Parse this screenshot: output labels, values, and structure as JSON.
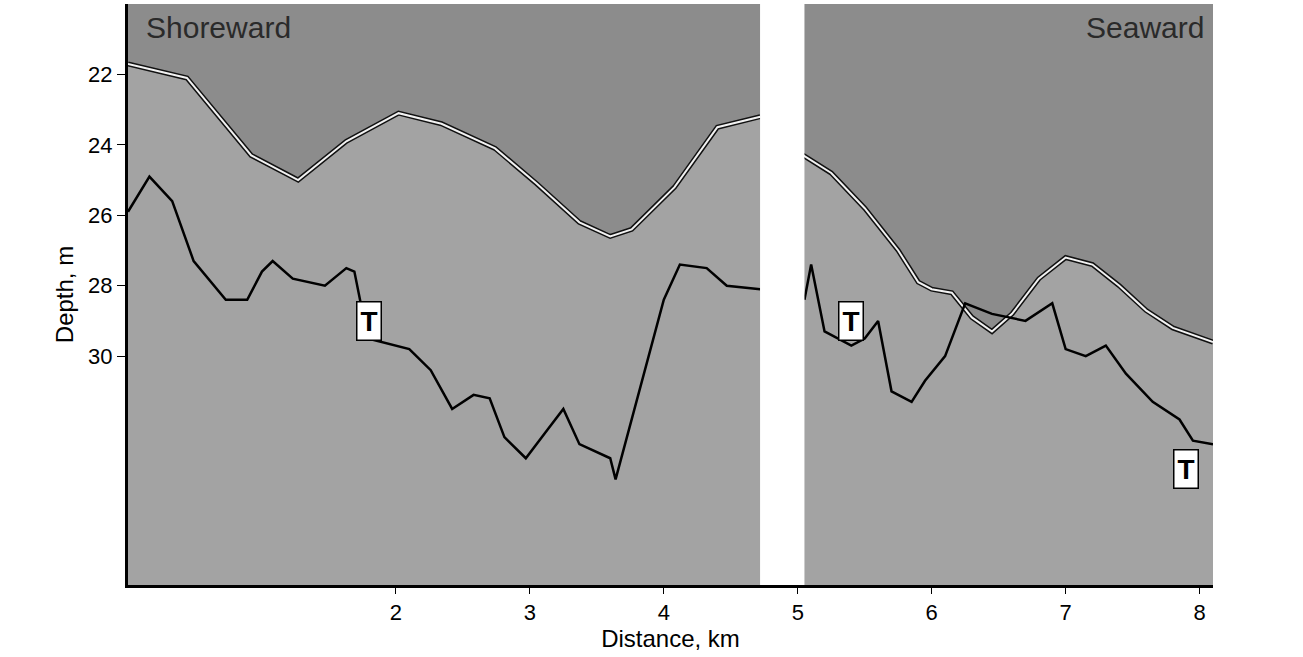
{
  "chart_data": {
    "type": "line",
    "x_label": "Distance, km",
    "y_label": "Depth, m",
    "xlim": [
      0,
      8.1
    ],
    "ylim": [
      36.5,
      20
    ],
    "xticks": [
      2,
      3,
      4,
      5,
      6,
      7,
      8
    ],
    "yticks": [
      22,
      24,
      26,
      28,
      30
    ],
    "grid": false,
    "series": [
      {
        "type": "area",
        "color": "#8c8c8c",
        "x": [
          0,
          0.44,
          0.92,
          1.27,
          1.63,
          2.02,
          2.34,
          2.74,
          3.05,
          3.37,
          3.6,
          3.76,
          4.08,
          4.4,
          4.72,
          4.86,
          5.0,
          5.25,
          5.5,
          5.75,
          5.9,
          6.0,
          6.15,
          6.3,
          6.45,
          6.6,
          6.8,
          7.0,
          7.2,
          7.4,
          7.6,
          7.8,
          8.1
        ],
        "values": [
          21.7,
          22.1,
          24.3,
          25.0,
          23.9,
          23.1,
          23.4,
          24.1,
          25.1,
          26.2,
          26.6,
          26.4,
          25.2,
          23.5,
          23.2,
          null,
          24.2,
          24.8,
          25.8,
          27.0,
          27.9,
          28.1,
          28.2,
          28.9,
          29.3,
          28.8,
          27.8,
          27.2,
          27.4,
          28.0,
          28.7,
          29.2,
          29.6
        ]
      },
      {
        "type": "line",
        "color": "#000000",
        "x": [
          0,
          0.16,
          0.33,
          0.49,
          0.73,
          0.89,
          1.0,
          1.08,
          1.23,
          1.47,
          1.63,
          1.69,
          1.79,
          2.1,
          2.26,
          2.42,
          2.58,
          2.7,
          2.81,
          2.97,
          3.13,
          3.25,
          3.37,
          3.6,
          3.64,
          3.76,
          4.0,
          4.12,
          4.32,
          4.47,
          4.72,
          4.86,
          5.05,
          5.1,
          5.2,
          5.4,
          5.5,
          5.6,
          5.7,
          5.85,
          5.95,
          6.1,
          6.25,
          6.45,
          6.7,
          6.9,
          7.0,
          7.15,
          7.3,
          7.45,
          7.65,
          7.85,
          7.95,
          8.1
        ],
        "values": [
          25.9,
          24.9,
          25.6,
          27.3,
          28.4,
          28.4,
          27.6,
          27.3,
          27.8,
          28.0,
          27.5,
          27.6,
          29.5,
          29.8,
          30.4,
          31.5,
          31.1,
          31.2,
          32.3,
          32.9,
          32.1,
          31.5,
          32.5,
          32.9,
          33.5,
          31.8,
          28.4,
          27.4,
          27.5,
          28.0,
          28.1,
          null,
          28.4,
          27.4,
          29.3,
          29.7,
          29.5,
          29.0,
          31.0,
          31.3,
          30.7,
          30.0,
          28.5,
          28.8,
          29.0,
          28.5,
          29.8,
          30.0,
          29.7,
          30.5,
          31.3,
          31.8,
          32.4,
          32.5
        ]
      }
    ],
    "annotations": [
      {
        "text": "Shoreward",
        "x": 0.12,
        "y": 20.15
      },
      {
        "text": "Seaward",
        "x": 8.05,
        "y": 20.15
      },
      {
        "text": "T",
        "x": 1.8,
        "y": 29.0
      },
      {
        "text": "T",
        "x": 5.4,
        "y": 29.0
      },
      {
        "text": "T",
        "x": 7.9,
        "y": 33.2
      }
    ]
  }
}
